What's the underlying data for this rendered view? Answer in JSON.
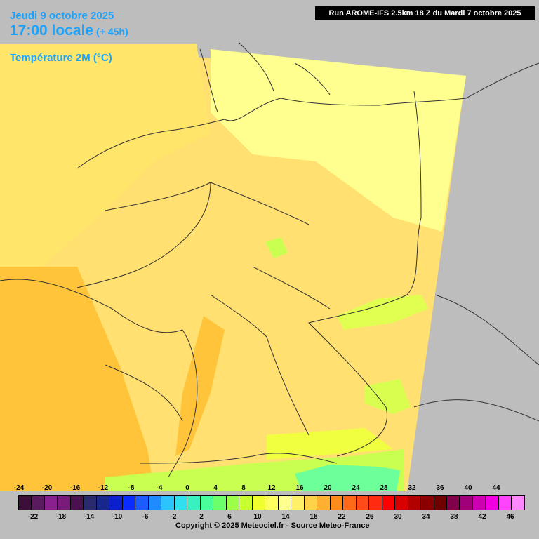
{
  "header": {
    "date": "Jeudi 9 octobre 2025",
    "time": "17:00 locale",
    "lead": "(+ 45h)",
    "variable": "Température 2M (°C)",
    "run": "Run AROME-IFS 2.5km 18 Z du Mardi 7 octobre 2025"
  },
  "legend": {
    "top_labels": [
      "-24",
      "-20",
      "-16",
      "-12",
      "-8",
      "-4",
      "0",
      "4",
      "8",
      "12",
      "16",
      "20",
      "24",
      "28",
      "32",
      "36",
      "40",
      "44"
    ],
    "bottom_labels": [
      "-22",
      "-18",
      "-14",
      "-10",
      "-6",
      "-2",
      "2",
      "6",
      "10",
      "14",
      "18",
      "22",
      "26",
      "30",
      "34",
      "38",
      "42",
      "46"
    ],
    "colors": [
      "#3b0f3a",
      "#5a1a5e",
      "#8a1f8f",
      "#7a1a7a",
      "#4a1050",
      "#2a2a6e",
      "#17278a",
      "#0b1fcc",
      "#0b2cff",
      "#1a5cff",
      "#1e8cff",
      "#2bc4ff",
      "#30e0f0",
      "#3af0c0",
      "#4aff9a",
      "#6cff6c",
      "#9cff4a",
      "#c8ff30",
      "#f0ff30",
      "#ffff60",
      "#ffff90",
      "#fff06a",
      "#ffd24a",
      "#ffb030",
      "#ff8c1a",
      "#ff6a1a",
      "#ff4a1a",
      "#ff2a10",
      "#ff0000",
      "#d80000",
      "#b00000",
      "#8a0000",
      "#6e0000",
      "#80004a",
      "#a0007a",
      "#cc00b0",
      "#f000e0",
      "#ff44ff",
      "#ff88ff"
    ]
  },
  "copyright": "Copyright © 2025 Meteociel.fr - Source Meteo-France",
  "map_colors": {
    "background": "#bdbdbd",
    "warm": "#ffd24a",
    "mild": "#fff06a",
    "cool": "#ffff90",
    "border": "#333333"
  }
}
